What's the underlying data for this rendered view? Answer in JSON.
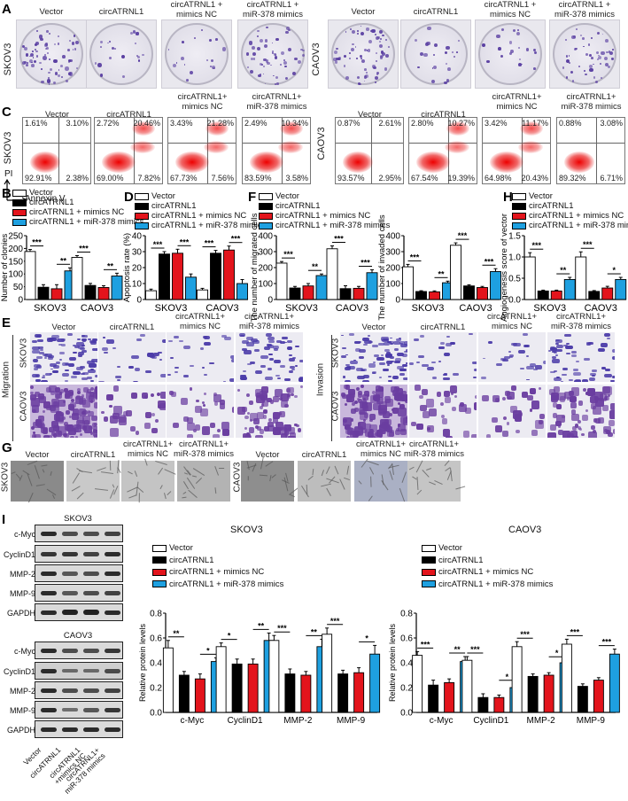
{
  "panels": {
    "A": "A",
    "B": "B",
    "C": "C",
    "D": "D",
    "E": "E",
    "F": "F",
    "G": "G",
    "H": "H",
    "I": "I"
  },
  "groups": [
    "Vector",
    "circATRNL1",
    "circATRNL1 + mimics NC",
    "circATRNL1 + miR-378 mimics"
  ],
  "colors": {
    "vector": "#ffffff",
    "circATRNL1": "#000000",
    "mimics_nc": "#e3141c",
    "mir378": "#1ea0e0"
  },
  "panelA": {
    "col_labels": [
      "Vector",
      "circATRNL1",
      "circATRNL1 +\nmimics NC",
      "circATRNL1 +\nmiR-378 mimics"
    ],
    "row_left": "SKOV3",
    "row_right": "CAOV3"
  },
  "panelC": {
    "col_labels": [
      "Vector",
      "circATRNL1",
      "circATRNL1+\nmimics NC",
      "circATRNL1+\nmiR-378 mimics"
    ],
    "row_left": "SKOV3",
    "row_right": "CAOV3",
    "axis_y": "PI",
    "axis_x": "Annexin V",
    "skov3": [
      {
        "ul": "1.61%",
        "ur": "3.10%",
        "ll": "92.91%",
        "lr": "2.38%"
      },
      {
        "ul": "2.72%",
        "ur": "20.46%",
        "ll": "69.00%",
        "lr": "7.82%"
      },
      {
        "ul": "3.43%",
        "ur": "21.28%",
        "ll": "67.73%",
        "lr": "7.56%"
      },
      {
        "ul": "2.49%",
        "ur": "10.34%",
        "ll": "83.59%",
        "lr": "3.58%"
      }
    ],
    "caov3": [
      {
        "ul": "0.87%",
        "ur": "2.61%",
        "ll": "93.57%",
        "lr": "2.95%"
      },
      {
        "ul": "2.80%",
        "ur": "10.27%",
        "ll": "67.54%",
        "lr": "19.39%"
      },
      {
        "ul": "3.42%",
        "ur": "11.17%",
        "ll": "64.98%",
        "lr": "20.43%"
      },
      {
        "ul": "0.88%",
        "ur": "3.08%",
        "ll": "89.32%",
        "lr": "6.71%"
      }
    ]
  },
  "legend": {
    "vector": "Vector",
    "circ": "circATRNL1",
    "nc": "circATRNL1 + mimics NC",
    "mir": "circATRNL1 + miR-378 mimics"
  },
  "panelE": {
    "col_labels": [
      "Vector",
      "circATRNL1",
      "circATRNL1+\nmimics NC",
      "circATRNL1+\nmiR-378 mimics"
    ],
    "left_title": "Migration",
    "right_title": "Invasion",
    "rows": [
      "SKOV3",
      "CAOV3"
    ]
  },
  "panelG": {
    "col_labels": [
      "Vector",
      "circATRNL1",
      "circATRNL1+\nmimics NC",
      "circATRNL1+\nmiR-378 mimics"
    ],
    "row_left": "SKOV3",
    "row_right": "CAOV3"
  },
  "panelI": {
    "blot_title_top": "SKOV3",
    "blot_title_bottom": "CAOV3",
    "proteins": [
      "c-Myc",
      "CyclinD1",
      "MMP-2",
      "MMP-9",
      "GAPDH"
    ],
    "lane_labels": [
      "Vector",
      "circATRNL1",
      "circATRNL1\n+mimics NC",
      "circATRNL1+\nmiR-378 mimics"
    ]
  },
  "chart_data": [
    {
      "id": "B",
      "type": "bar",
      "title": "",
      "ylabel": "Number of clonies",
      "xlabel": "",
      "ylim": [
        0,
        250
      ],
      "yticks": [
        0,
        50,
        100,
        150,
        200,
        250
      ],
      "categories": [
        "SKOV3",
        "CAOV3"
      ],
      "series": [
        {
          "name": "Vector",
          "values": [
            188,
            165
          ],
          "err": [
            8,
            7
          ]
        },
        {
          "name": "circATRNL1",
          "values": [
            48,
            55
          ],
          "err": [
            10,
            8
          ]
        },
        {
          "name": "circATRNL1 + mimics NC",
          "values": [
            42,
            47
          ],
          "err": [
            16,
            7
          ]
        },
        {
          "name": "circATRNL1 + miR-378 mimics",
          "values": [
            112,
            92
          ],
          "err": [
            12,
            11
          ]
        }
      ],
      "annotations": [
        {
          "cat": 0,
          "between": [
            0,
            1
          ],
          "text": "***"
        },
        {
          "cat": 0,
          "between": [
            2,
            3
          ],
          "text": "**"
        },
        {
          "cat": 1,
          "between": [
            0,
            1
          ],
          "text": "***"
        },
        {
          "cat": 1,
          "between": [
            2,
            3
          ],
          "text": "**"
        }
      ]
    },
    {
      "id": "D",
      "type": "bar",
      "ylabel": "Apoptosis rate (%)",
      "ylim": [
        0,
        40
      ],
      "yticks": [
        0,
        10,
        20,
        30,
        40
      ],
      "categories": [
        "SKOV3",
        "CAOV3"
      ],
      "series": [
        {
          "name": "Vector",
          "values": [
            5.5,
            6
          ],
          "err": [
            1,
            1
          ]
        },
        {
          "name": "circATRNL1",
          "values": [
            28.5,
            29
          ],
          "err": [
            1.5,
            1.8
          ]
        },
        {
          "name": "circATRNL1 + mimics NC",
          "values": [
            29,
            31
          ],
          "err": [
            2.5,
            2.5
          ]
        },
        {
          "name": "circATRNL1 + miR-378 mimics",
          "values": [
            14,
            10
          ],
          "err": [
            2,
            2.5
          ]
        }
      ],
      "annotations": [
        {
          "cat": 0,
          "between": [
            0,
            1
          ],
          "text": "***"
        },
        {
          "cat": 0,
          "between": [
            2,
            3
          ],
          "text": "***"
        },
        {
          "cat": 1,
          "between": [
            0,
            1
          ],
          "text": "***"
        },
        {
          "cat": 1,
          "between": [
            2,
            3
          ],
          "text": "***"
        }
      ]
    },
    {
      "id": "F-migration",
      "type": "bar",
      "ylabel": "The number of migrated cells",
      "ylim": [
        0,
        400
      ],
      "yticks": [
        0,
        100,
        200,
        300,
        400
      ],
      "categories": [
        "SKOV3",
        "CAOV3"
      ],
      "series": [
        {
          "name": "Vector",
          "values": [
            228,
            318
          ],
          "err": [
            10,
            18
          ]
        },
        {
          "name": "circATRNL1",
          "values": [
            72,
            68
          ],
          "err": [
            10,
            18
          ]
        },
        {
          "name": "circATRNL1 + mimics NC",
          "values": [
            85,
            70
          ],
          "err": [
            15,
            12
          ]
        },
        {
          "name": "circATRNL1 + miR-378 mimics",
          "values": [
            150,
            168
          ],
          "err": [
            10,
            18
          ]
        }
      ],
      "annotations": [
        {
          "cat": 0,
          "between": [
            0,
            1
          ],
          "text": "***"
        },
        {
          "cat": 0,
          "between": [
            2,
            3
          ],
          "text": "**"
        },
        {
          "cat": 1,
          "between": [
            0,
            1
          ],
          "text": "***"
        },
        {
          "cat": 1,
          "between": [
            2,
            3
          ],
          "text": "***"
        }
      ]
    },
    {
      "id": "F-invasion",
      "type": "bar",
      "ylabel": "The number of invaded cells",
      "ylim": [
        0,
        400
      ],
      "yticks": [
        0,
        100,
        200,
        300,
        400
      ],
      "categories": [
        "SKOV3",
        "CAOV3"
      ],
      "series": [
        {
          "name": "Vector",
          "values": [
            205,
            340
          ],
          "err": [
            15,
            15
          ]
        },
        {
          "name": "circATRNL1",
          "values": [
            50,
            85
          ],
          "err": [
            5,
            7
          ]
        },
        {
          "name": "circATRNL1 + mimics NC",
          "values": [
            48,
            75
          ],
          "err": [
            6,
            7
          ]
        },
        {
          "name": "circATRNL1 + miR-378 mimics",
          "values": [
            105,
            175
          ],
          "err": [
            10,
            18
          ]
        }
      ],
      "annotations": [
        {
          "cat": 0,
          "between": [
            0,
            1
          ],
          "text": "***"
        },
        {
          "cat": 0,
          "between": [
            2,
            3
          ],
          "text": "**"
        },
        {
          "cat": 1,
          "between": [
            0,
            1
          ],
          "text": "***"
        },
        {
          "cat": 1,
          "between": [
            2,
            3
          ],
          "text": "***"
        }
      ]
    },
    {
      "id": "H",
      "type": "bar",
      "ylabel": "Angiogenesis score of vector",
      "ylim": [
        0,
        1.5
      ],
      "yticks": [
        0.0,
        0.5,
        1.0,
        1.5
      ],
      "categories": [
        "SKOV3",
        "CAOV3"
      ],
      "series": [
        {
          "name": "Vector",
          "values": [
            1.0,
            1.0
          ],
          "err": [
            0.1,
            0.12
          ]
        },
        {
          "name": "circATRNL1",
          "values": [
            0.2,
            0.19
          ],
          "err": [
            0.02,
            0.02
          ]
        },
        {
          "name": "circATRNL1 + mimics NC",
          "values": [
            0.2,
            0.27
          ],
          "err": [
            0.02,
            0.04
          ]
        },
        {
          "name": "circATRNL1 + miR-378 mimics",
          "values": [
            0.47,
            0.47
          ],
          "err": [
            0.05,
            0.05
          ]
        }
      ],
      "annotations": [
        {
          "cat": 0,
          "between": [
            0,
            1
          ],
          "text": "***"
        },
        {
          "cat": 0,
          "between": [
            2,
            3
          ],
          "text": "**"
        },
        {
          "cat": 1,
          "between": [
            0,
            1
          ],
          "text": "***"
        },
        {
          "cat": 1,
          "between": [
            2,
            3
          ],
          "text": "*"
        }
      ]
    },
    {
      "id": "I-SKOV3",
      "type": "bar",
      "title": "SKOV3",
      "ylabel": "Relative protein  levels",
      "ylim": [
        0,
        0.8
      ],
      "yticks": [
        0.0,
        0.2,
        0.4,
        0.6,
        0.8
      ],
      "categories": [
        "c-Myc",
        "CyclinD1",
        "MMP-2",
        "MMP-9"
      ],
      "series": [
        {
          "name": "Vector",
          "values": [
            0.52,
            0.53,
            0.58,
            0.63
          ],
          "err": [
            0.06,
            0.03,
            0.04,
            0.05
          ]
        },
        {
          "name": "circATRNL1",
          "values": [
            0.3,
            0.39,
            0.31,
            0.31
          ],
          "err": [
            0.03,
            0.04,
            0.04,
            0.03
          ]
        },
        {
          "name": "circATRNL1 + mimics NC",
          "values": [
            0.27,
            0.39,
            0.3,
            0.32
          ],
          "err": [
            0.04,
            0.04,
            0.03,
            0.04
          ]
        },
        {
          "name": "circATRNL1 + miR-378 mimics",
          "values": [
            0.41,
            0.58,
            0.53,
            0.47
          ],
          "err": [
            0.03,
            0.06,
            0.06,
            0.07
          ]
        }
      ],
      "annotations": [
        {
          "cat": 0,
          "between": [
            0,
            1
          ],
          "text": "**"
        },
        {
          "cat": 0,
          "between": [
            2,
            3
          ],
          "text": "*"
        },
        {
          "cat": 1,
          "between": [
            0,
            1
          ],
          "text": "*"
        },
        {
          "cat": 1,
          "between": [
            2,
            3
          ],
          "text": "**"
        },
        {
          "cat": 2,
          "between": [
            0,
            1
          ],
          "text": "***"
        },
        {
          "cat": 2,
          "between": [
            2,
            3
          ],
          "text": "**"
        },
        {
          "cat": 3,
          "between": [
            0,
            1
          ],
          "text": "***"
        },
        {
          "cat": 3,
          "between": [
            2,
            3
          ],
          "text": "*"
        }
      ]
    },
    {
      "id": "I-CAOV3",
      "type": "bar",
      "title": "CAOV3",
      "ylabel": "Relative protein  levels",
      "ylim": [
        0,
        0.8
      ],
      "yticks": [
        0.0,
        0.2,
        0.4,
        0.6,
        0.8
      ],
      "categories": [
        "c-Myc",
        "CyclinD1",
        "MMP-2",
        "MMP-9"
      ],
      "series": [
        {
          "name": "Vector",
          "values": [
            0.46,
            0.42,
            0.53,
            0.55
          ],
          "err": [
            0.03,
            0.03,
            0.04,
            0.04
          ]
        },
        {
          "name": "circATRNL1",
          "values": [
            0.22,
            0.12,
            0.29,
            0.21
          ],
          "err": [
            0.04,
            0.03,
            0.02,
            0.02
          ]
        },
        {
          "name": "circATRNL1 + mimics NC",
          "values": [
            0.24,
            0.12,
            0.3,
            0.26
          ],
          "err": [
            0.03,
            0.02,
            0.02,
            0.02
          ]
        },
        {
          "name": "circATRNL1 + miR-378 mimics",
          "values": [
            0.41,
            0.2,
            0.4,
            0.47
          ],
          "err": [
            0.04,
            0.03,
            0.02,
            0.04
          ]
        }
      ],
      "annotations": [
        {
          "cat": 0,
          "between": [
            0,
            1
          ],
          "text": "***"
        },
        {
          "cat": 0,
          "between": [
            2,
            3
          ],
          "text": "**"
        },
        {
          "cat": 1,
          "between": [
            0,
            1
          ],
          "text": "***"
        },
        {
          "cat": 1,
          "between": [
            2,
            3
          ],
          "text": "*"
        },
        {
          "cat": 2,
          "between": [
            0,
            1
          ],
          "text": "***"
        },
        {
          "cat": 2,
          "between": [
            2,
            3
          ],
          "text": "*"
        },
        {
          "cat": 3,
          "between": [
            0,
            1
          ],
          "text": "***"
        },
        {
          "cat": 3,
          "between": [
            2,
            3
          ],
          "text": "***"
        }
      ]
    }
  ]
}
